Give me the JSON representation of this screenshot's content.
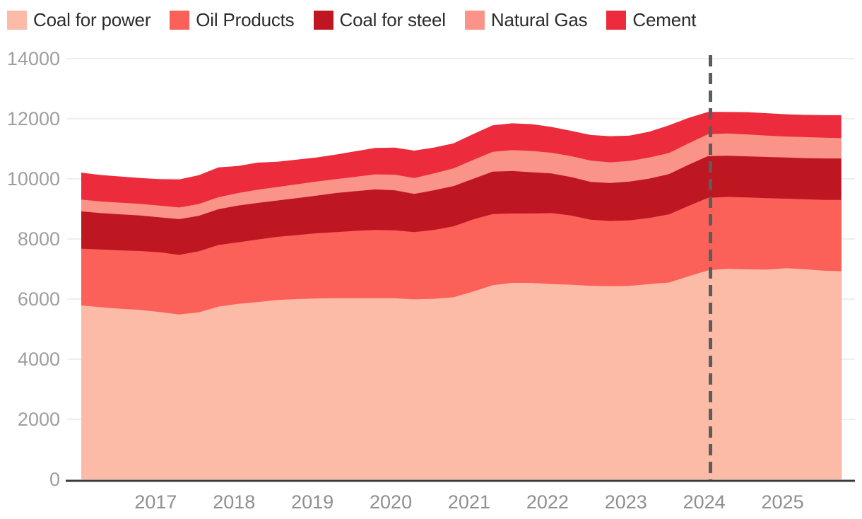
{
  "chart_data": {
    "type": "area",
    "stacked": true,
    "legend_position": "top",
    "grid": "horizontal",
    "xlim": [
      2016.05,
      2025.75
    ],
    "ylim": [
      0,
      14000
    ],
    "x_ticks": [
      2017,
      2018,
      2019,
      2020,
      2021,
      2022,
      2023,
      2024,
      2025
    ],
    "x_tick_labels": [
      "2017",
      "2018",
      "2019",
      "2020",
      "2021",
      "2022",
      "2023",
      "2024",
      "2025"
    ],
    "y_ticks": [
      0,
      2000,
      4000,
      6000,
      8000,
      10000,
      12000,
      14000
    ],
    "y_tick_labels": [
      "0",
      "2000",
      "4000",
      "6000",
      "8000",
      "10000",
      "12000",
      "14000"
    ],
    "x": [
      2016.05,
      2016.3,
      2016.55,
      2016.8,
      2017.05,
      2017.3,
      2017.55,
      2017.8,
      2018.05,
      2018.3,
      2018.55,
      2018.8,
      2019.05,
      2019.3,
      2019.55,
      2019.8,
      2020.05,
      2020.3,
      2020.55,
      2020.8,
      2021.05,
      2021.3,
      2021.55,
      2021.8,
      2022.05,
      2022.3,
      2022.55,
      2022.8,
      2023.05,
      2023.3,
      2023.55,
      2023.8,
      2024.05,
      2024.3,
      2024.55,
      2024.8,
      2025.05,
      2025.3,
      2025.55,
      2025.75
    ],
    "series": [
      {
        "name": "Coal for power",
        "color": "#FBBBA6",
        "values": [
          5790,
          5730,
          5680,
          5640,
          5570,
          5490,
          5560,
          5750,
          5840,
          5900,
          5970,
          6000,
          6020,
          6030,
          6030,
          6030,
          6030,
          5990,
          6010,
          6060,
          6250,
          6460,
          6540,
          6540,
          6500,
          6480,
          6440,
          6430,
          6440,
          6500,
          6550,
          6760,
          6960,
          7010,
          6990,
          6980,
          7030,
          6990,
          6940,
          6930
        ]
      },
      {
        "name": "Oil Products",
        "color": "#FB6159",
        "values": [
          1890,
          1920,
          1940,
          1960,
          1990,
          1980,
          2030,
          2050,
          2050,
          2080,
          2100,
          2130,
          2170,
          2200,
          2240,
          2270,
          2260,
          2240,
          2290,
          2360,
          2400,
          2370,
          2310,
          2310,
          2360,
          2300,
          2200,
          2170,
          2180,
          2200,
          2270,
          2340,
          2410,
          2390,
          2390,
          2380,
          2310,
          2330,
          2360,
          2370
        ]
      },
      {
        "name": "Coal for steel",
        "color": "#BF1722",
        "values": [
          1240,
          1210,
          1200,
          1180,
          1160,
          1190,
          1180,
          1190,
          1220,
          1220,
          1210,
          1230,
          1250,
          1300,
          1320,
          1350,
          1330,
          1270,
          1320,
          1340,
          1350,
          1410,
          1410,
          1370,
          1320,
          1280,
          1260,
          1260,
          1290,
          1310,
          1340,
          1370,
          1390,
          1370,
          1370,
          1370,
          1370,
          1370,
          1380,
          1380
        ]
      },
      {
        "name": "Natural Gas",
        "color": "#FA9388",
        "values": [
          390,
          390,
          390,
          390,
          390,
          390,
          395,
          400,
          420,
          440,
          450,
          460,
          470,
          460,
          480,
          500,
          520,
          530,
          560,
          590,
          630,
          660,
          700,
          710,
          690,
          700,
          710,
          690,
          690,
          700,
          700,
          710,
          730,
          740,
          730,
          710,
          700,
          700,
          690,
          680
        ]
      },
      {
        "name": "Cement",
        "color": "#EC2B3C",
        "values": [
          900,
          880,
          870,
          860,
          880,
          930,
          960,
          990,
          900,
          900,
          840,
          820,
          800,
          820,
          850,
          880,
          900,
          910,
          860,
          830,
          860,
          880,
          890,
          890,
          860,
          840,
          850,
          870,
          840,
          860,
          920,
          850,
          740,
          715,
          740,
          745,
          740,
          740,
          750,
          760
        ]
      }
    ],
    "annotation": {
      "type": "vline",
      "x": 2024.08,
      "style": "dashed",
      "color": "#5C5C5C"
    },
    "styles": {
      "gridline_color": "#E9E9E9",
      "axis_line_color": "#3A3A3A",
      "y_tick_label_color": "#9E9E9E",
      "x_tick_label_color": "#8F8F8F",
      "legend_text_color": "#2B2B2B"
    }
  }
}
